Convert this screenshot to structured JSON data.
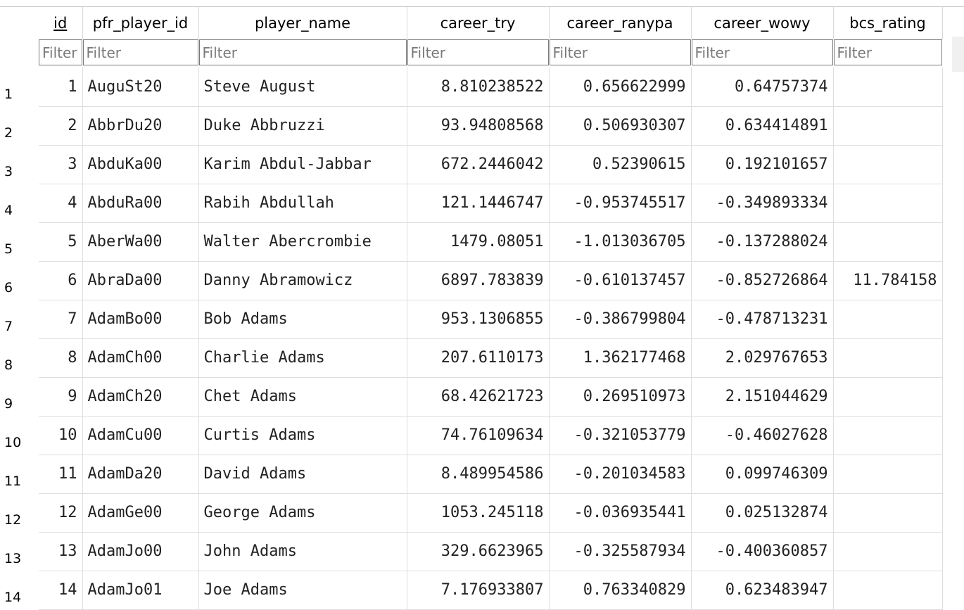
{
  "columns": [
    {
      "key": "id",
      "label": "id"
    },
    {
      "key": "pfr_player_id",
      "label": "pfr_player_id"
    },
    {
      "key": "player_name",
      "label": "player_name"
    },
    {
      "key": "career_try",
      "label": "career_try"
    },
    {
      "key": "career_ranypa",
      "label": "career_ranypa"
    },
    {
      "key": "career_wowy",
      "label": "career_wowy"
    },
    {
      "key": "bcs_rating",
      "label": "bcs_rating"
    }
  ],
  "filter_placeholder": "Filter",
  "rows": [
    {
      "rownum": "1",
      "id": "1",
      "pfr_player_id": "AuguSt20",
      "player_name": "Steve August",
      "career_try": "8.810238522",
      "career_ranypa": "0.656622999",
      "career_wowy": "0.64757374",
      "bcs_rating": ""
    },
    {
      "rownum": "2",
      "id": "2",
      "pfr_player_id": "AbbrDu20",
      "player_name": "Duke Abbruzzi",
      "career_try": "93.94808568",
      "career_ranypa": "0.506930307",
      "career_wowy": "0.634414891",
      "bcs_rating": ""
    },
    {
      "rownum": "3",
      "id": "3",
      "pfr_player_id": "AbduKa00",
      "player_name": "Karim Abdul-Jabbar",
      "career_try": "672.2446042",
      "career_ranypa": "0.52390615",
      "career_wowy": "0.192101657",
      "bcs_rating": ""
    },
    {
      "rownum": "4",
      "id": "4",
      "pfr_player_id": "AbduRa00",
      "player_name": "Rabih Abdullah",
      "career_try": "121.1446747",
      "career_ranypa": "-0.953745517",
      "career_wowy": "-0.349893334",
      "bcs_rating": ""
    },
    {
      "rownum": "5",
      "id": "5",
      "pfr_player_id": "AberWa00",
      "player_name": "Walter Abercrombie",
      "career_try": "1479.08051",
      "career_ranypa": "-1.013036705",
      "career_wowy": "-0.137288024",
      "bcs_rating": ""
    },
    {
      "rownum": "6",
      "id": "6",
      "pfr_player_id": "AbraDa00",
      "player_name": "Danny Abramowicz",
      "career_try": "6897.783839",
      "career_ranypa": "-0.610137457",
      "career_wowy": "-0.852726864",
      "bcs_rating": "11.784158"
    },
    {
      "rownum": "7",
      "id": "7",
      "pfr_player_id": "AdamBo00",
      "player_name": "Bob Adams",
      "career_try": "953.1306855",
      "career_ranypa": "-0.386799804",
      "career_wowy": "-0.478713231",
      "bcs_rating": ""
    },
    {
      "rownum": "8",
      "id": "8",
      "pfr_player_id": "AdamCh00",
      "player_name": "Charlie Adams",
      "career_try": "207.6110173",
      "career_ranypa": "1.362177468",
      "career_wowy": "2.029767653",
      "bcs_rating": ""
    },
    {
      "rownum": "9",
      "id": "9",
      "pfr_player_id": "AdamCh20",
      "player_name": "Chet Adams",
      "career_try": "68.42621723",
      "career_ranypa": "0.269510973",
      "career_wowy": "2.151044629",
      "bcs_rating": ""
    },
    {
      "rownum": "10",
      "id": "10",
      "pfr_player_id": "AdamCu00",
      "player_name": "Curtis Adams",
      "career_try": "74.76109634",
      "career_ranypa": "-0.321053779",
      "career_wowy": "-0.46027628",
      "bcs_rating": ""
    },
    {
      "rownum": "11",
      "id": "11",
      "pfr_player_id": "AdamDa20",
      "player_name": "David Adams",
      "career_try": "8.489954586",
      "career_ranypa": "-0.201034583",
      "career_wowy": "0.099746309",
      "bcs_rating": ""
    },
    {
      "rownum": "12",
      "id": "12",
      "pfr_player_id": "AdamGe00",
      "player_name": "George Adams",
      "career_try": "1053.245118",
      "career_ranypa": "-0.036935441",
      "career_wowy": "0.025132874",
      "bcs_rating": ""
    },
    {
      "rownum": "13",
      "id": "13",
      "pfr_player_id": "AdamJo00",
      "player_name": "John Adams",
      "career_try": "329.6623965",
      "career_ranypa": "-0.325587934",
      "career_wowy": "-0.400360857",
      "bcs_rating": ""
    },
    {
      "rownum": "14",
      "id": "14",
      "pfr_player_id": "AdamJo01",
      "player_name": "Joe Adams",
      "career_try": "7.176933807",
      "career_ranypa": "0.763340829",
      "career_wowy": "0.623483947",
      "bcs_rating": ""
    }
  ]
}
